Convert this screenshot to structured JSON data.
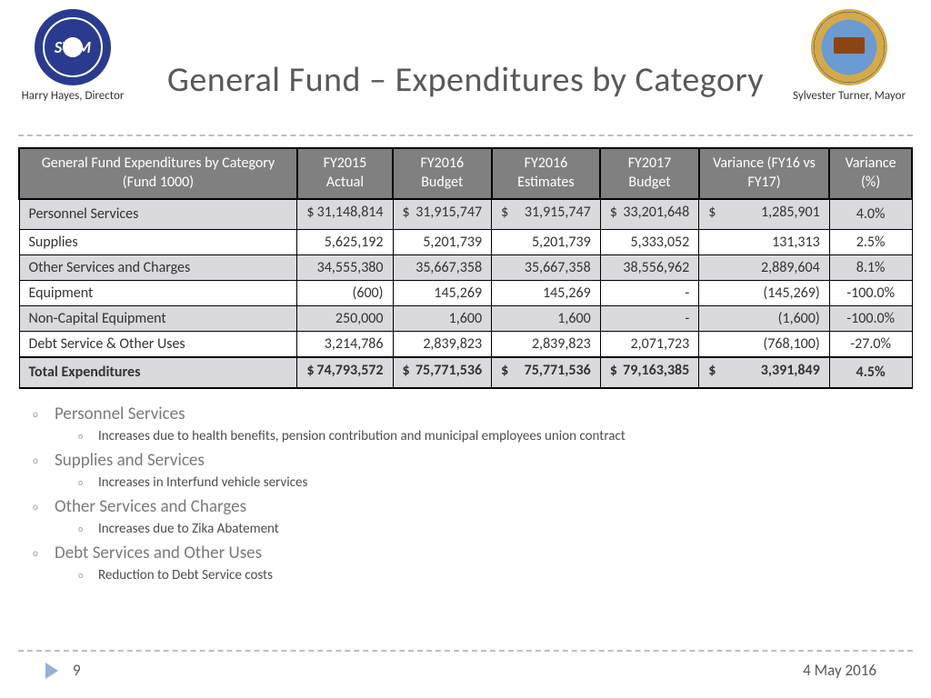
{
  "header": {
    "title": "General Fund – Expenditures by Category",
    "left_logo_initials": "SWM",
    "left_caption": "Harry Hayes, Director",
    "right_caption": "Sylvester Turner, Mayor"
  },
  "table": {
    "columns": [
      "General Fund Expenditures by Category (Fund 1000)",
      "FY2015 Actual",
      "FY2016 Budget",
      "FY2016 Estimates",
      "FY2017 Budget",
      "Variance (FY16 vs FY17)",
      "Variance (%)"
    ],
    "rows": [
      {
        "label": "Personnel Services",
        "c1": "$   31,148,814",
        "c2": "$   31,915,747",
        "c3": "$   31,915,747",
        "c4": "$   33,201,648",
        "c5": "$      1,285,901",
        "pct": "4.0%",
        "shade": true,
        "dollar": true
      },
      {
        "label": "Supplies",
        "c1": "5,625,192",
        "c2": "5,201,739",
        "c3": "5,201,739",
        "c4": "5,333,052",
        "c5": "131,313",
        "pct": "2.5%",
        "shade": false,
        "dollar": false
      },
      {
        "label": "Other Services and Charges",
        "c1": "34,555,380",
        "c2": "35,667,358",
        "c3": "35,667,358",
        "c4": "38,556,962",
        "c5": "2,889,604",
        "pct": "8.1%",
        "shade": true,
        "dollar": false
      },
      {
        "label": "Equipment",
        "c1": "(600)",
        "c2": "145,269",
        "c3": "145,269",
        "c4": "-",
        "c5": "(145,269)",
        "pct": "-100.0%",
        "shade": false,
        "dollar": false
      },
      {
        "label": "Non-Capital Equipment",
        "c1": "250,000",
        "c2": "1,600",
        "c3": "1,600",
        "c4": "-",
        "c5": "(1,600)",
        "pct": "-100.0%",
        "shade": true,
        "dollar": false
      },
      {
        "label": "Debt Service & Other Uses",
        "c1": "3,214,786",
        "c2": "2,839,823",
        "c3": "2,839,823",
        "c4": "2,071,723",
        "c5": "(768,100)",
        "pct": "-27.0%",
        "shade": false,
        "dollar": false
      }
    ],
    "total": {
      "label": "Total Expenditures",
      "c1": "$  74,793,572",
      "c2": "$  75,771,536",
      "c3": "$  75,771,536",
      "c4": "$  79,163,385",
      "c5": "$    3,391,849",
      "pct": "4.5%"
    }
  },
  "notes": [
    {
      "heading": "Personnel Services",
      "detail": "Increases due to health benefits, pension contribution and municipal employees union contract"
    },
    {
      "heading": "Supplies and Services",
      "detail": "Increases in Interfund vehicle services"
    },
    {
      "heading": "Other Services and Charges",
      "detail": "Increases due to Zika Abatement"
    },
    {
      "heading": "Debt Services and Other Uses",
      "detail": "Reduction to Debt Service costs"
    }
  ],
  "footer": {
    "page": "9",
    "date": "4 May 2016"
  },
  "colors": {
    "header_bg": "#808080",
    "shade_bg": "#d9d9de",
    "title_color": "#595959",
    "divider": "#bfbfbf",
    "triangle": "#9aaed6"
  }
}
